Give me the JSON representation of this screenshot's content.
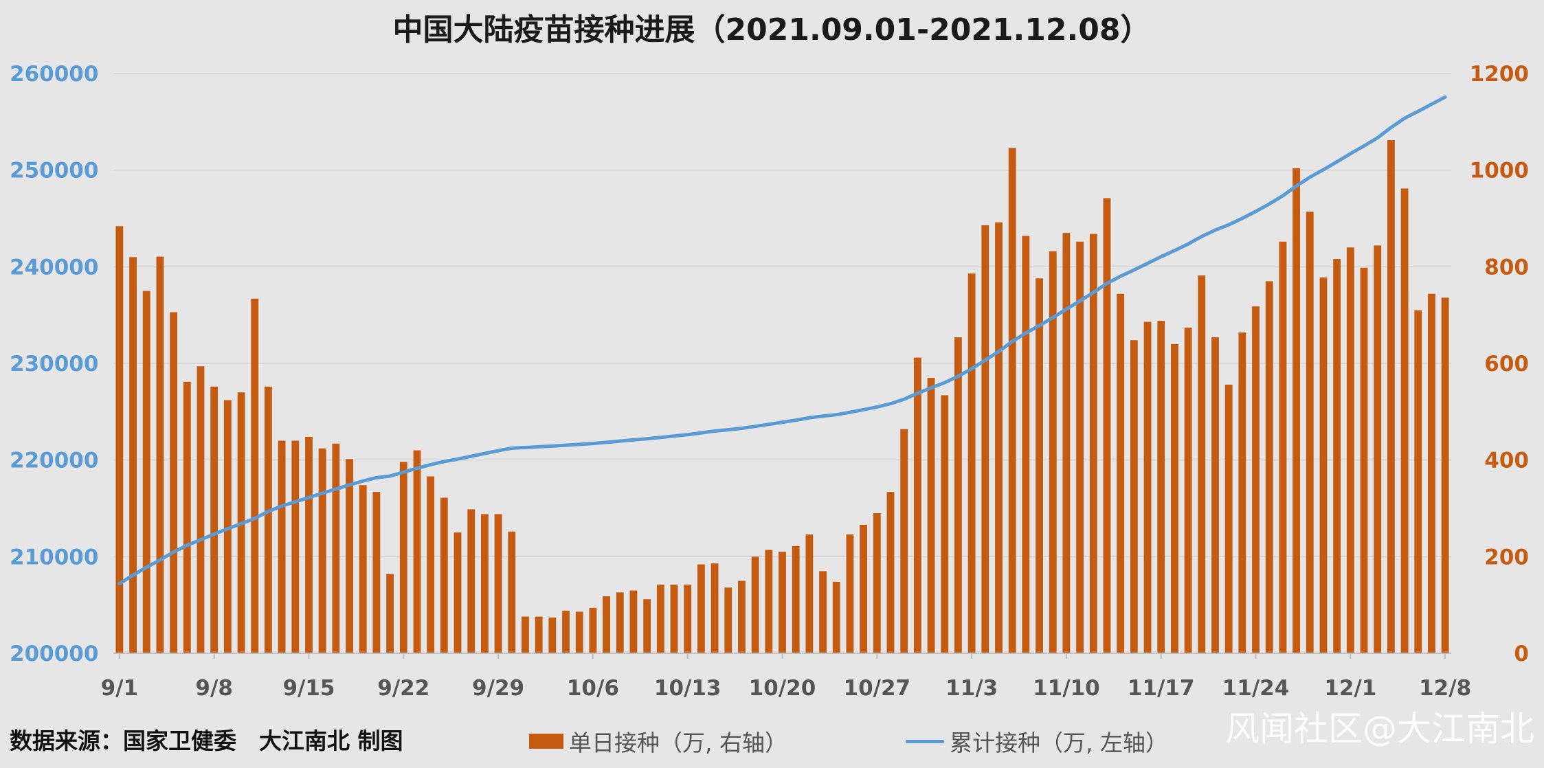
{
  "chart_data": {
    "type": "bar+line",
    "title": "中国大陆疫苗接种进展（2021.09.01-2021.12.08）",
    "x_tick_labels": [
      "9/1",
      "9/8",
      "9/15",
      "9/22",
      "9/29",
      "10/6",
      "10/13",
      "10/20",
      "10/27",
      "11/3",
      "11/10",
      "11/17",
      "11/24",
      "12/1",
      "12/8"
    ],
    "y_left": {
      "min": 200000,
      "max": 260000,
      "ticks": [
        200000,
        210000,
        220000,
        230000,
        240000,
        250000,
        260000
      ],
      "color": "#5b9bd5"
    },
    "y_right": {
      "min": 0,
      "max": 1200,
      "ticks": [
        0,
        200,
        400,
        600,
        800,
        1000,
        1200
      ],
      "color": "#c55a11"
    },
    "grid": true,
    "legend_position": "bottom",
    "series": [
      {
        "name": "单日接种（万, 右轴）",
        "type": "bar",
        "axis": "right",
        "color": "#c55a11",
        "values": [
          884,
          820,
          750,
          821,
          706,
          562,
          594,
          552,
          524,
          540,
          734,
          552,
          440,
          440,
          448,
          424,
          434,
          402,
          348,
          334,
          164,
          396,
          420,
          366,
          322,
          250,
          298,
          288,
          288,
          252,
          76,
          76,
          74,
          88,
          86,
          94,
          118,
          126,
          130,
          112,
          142,
          142,
          142,
          184,
          186,
          136,
          150,
          200,
          214,
          210,
          222,
          246,
          170,
          148,
          246,
          266,
          290,
          334,
          464,
          612,
          570,
          534,
          654,
          786,
          886,
          892,
          1046,
          864,
          776,
          832,
          870,
          852,
          868,
          942,
          744,
          648,
          686,
          688,
          640,
          674,
          782,
          654,
          556,
          664,
          718,
          770,
          852,
          1004,
          914,
          778,
          816,
          840,
          798,
          844,
          1062,
          962,
          710,
          744,
          736
        ]
      },
      {
        "name": "累计接种（万, 左轴）",
        "type": "line",
        "axis": "left",
        "color": "#5b9bd5",
        "values": [
          207200,
          208084,
          208904,
          209654,
          210475,
          211181,
          211743,
          212337,
          212889,
          213413,
          213953,
          214687,
          215239,
          215679,
          216119,
          216567,
          216991,
          217425,
          217827,
          218175,
          218339,
          218735,
          219155,
          219521,
          219843,
          220093,
          220391,
          220679,
          220967,
          221219,
          221295,
          221371,
          221445,
          221533,
          221619,
          221713,
          221831,
          221957,
          222087,
          222199,
          222341,
          222483,
          222625,
          222809,
          222995,
          223131,
          223281,
          223481,
          223695,
          223905,
          224127,
          224373,
          224543,
          224691,
          224937,
          225203,
          225493,
          225827,
          226291,
          226903,
          227473,
          228007,
          228661,
          229447,
          230333,
          231225,
          232271,
          233135,
          233911,
          234743,
          235613,
          236465,
          237333,
          238275,
          239019,
          239667,
          240353,
          241041,
          241681,
          242355,
          243137,
          243791,
          244347,
          245011,
          245729,
          246499,
          247351,
          248355,
          249269,
          250047,
          250863,
          251703,
          252501,
          253345,
          254407,
          255369,
          256079,
          256823,
          257559
        ]
      }
    ]
  },
  "footer": {
    "source_note": "数据来源：国家卫健委　大江南北 制图",
    "watermark": "风闻社区@大江南北"
  }
}
